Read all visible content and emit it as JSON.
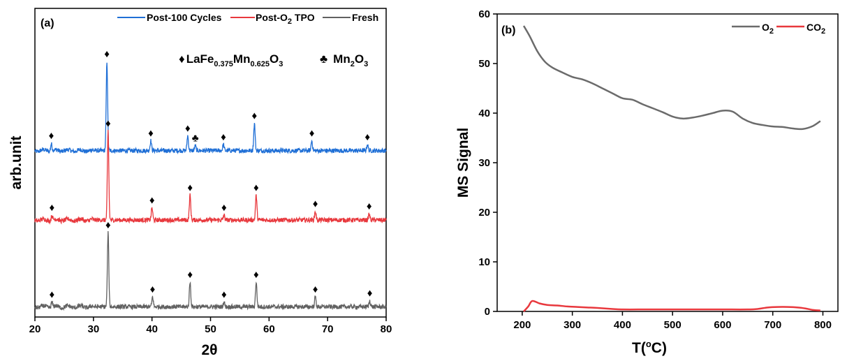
{
  "chart_data": [
    {
      "panel_label": "(a)",
      "type": "line",
      "xlabel": "2θ",
      "ylabel": "arb.unit",
      "xlim": [
        20,
        80
      ],
      "xticks": [
        20,
        30,
        40,
        50,
        60,
        70,
        80
      ],
      "legend": {
        "placement": "top",
        "labels": [
          "Post-100 Cycles",
          "Post-O",
          "2",
          " TPO",
          "Fresh"
        ]
      },
      "annotation": {
        "marker": "♦",
        "text_prefix": "LaFe",
        "sub1": "0.375",
        "mid": "Mn",
        "sub2": "0.625",
        "mid2": "O",
        "sub3": "3",
        "club": "♣",
        "club_text": "Mn",
        "club_sub1": "2",
        "club_mid": "O",
        "club_sub2": "3"
      },
      "series": [
        {
          "name": "Post-100 Cycles",
          "color": "#1f6fd6",
          "baseline": 0.66,
          "peaks": [
            [
              22.8,
              0.03
            ],
            [
              32.3,
              0.36
            ],
            [
              39.8,
              0.04
            ],
            [
              46.1,
              0.06
            ],
            [
              47.4,
              0.02
            ],
            [
              52.2,
              0.025
            ],
            [
              57.5,
              0.11
            ],
            [
              67.3,
              0.04
            ],
            [
              76.8,
              0.025
            ]
          ],
          "markers": [
            [
              22.8,
              "♦"
            ],
            [
              32.3,
              "♦"
            ],
            [
              39.8,
              "♦"
            ],
            [
              46.1,
              "♦"
            ],
            [
              47.4,
              "♣"
            ],
            [
              52.2,
              "♦"
            ],
            [
              57.5,
              "♦"
            ],
            [
              67.3,
              "♦"
            ],
            [
              76.8,
              "♦"
            ]
          ]
        },
        {
          "name": "Post-O2 TPO",
          "color": "#e8383d",
          "baseline": 0.38,
          "peaks": [
            [
              22.9,
              0.02
            ],
            [
              32.5,
              0.36
            ],
            [
              40.0,
              0.05
            ],
            [
              46.5,
              0.1
            ],
            [
              52.3,
              0.02
            ],
            [
              57.8,
              0.1
            ],
            [
              67.9,
              0.035
            ],
            [
              77.1,
              0.025
            ]
          ],
          "markers": [
            [
              22.9,
              "♦"
            ],
            [
              32.5,
              "♦"
            ],
            [
              40.0,
              "♦"
            ],
            [
              46.5,
              "♦"
            ],
            [
              52.3,
              "♦"
            ],
            [
              57.8,
              "♦"
            ],
            [
              67.9,
              "♦"
            ],
            [
              77.1,
              "♦"
            ]
          ]
        },
        {
          "name": "Fresh",
          "color": "#616161",
          "baseline": 0.03,
          "peaks": [
            [
              22.9,
              0.02
            ],
            [
              32.5,
              0.3
            ],
            [
              40.1,
              0.04
            ],
            [
              46.5,
              0.1
            ],
            [
              52.3,
              0.02
            ],
            [
              57.8,
              0.1
            ],
            [
              67.9,
              0.04
            ],
            [
              77.2,
              0.025
            ]
          ],
          "markers": [
            [
              22.9,
              "♦"
            ],
            [
              32.5,
              "♦"
            ],
            [
              40.1,
              "♦"
            ],
            [
              46.5,
              "♦"
            ],
            [
              52.3,
              "♦"
            ],
            [
              57.8,
              "♦"
            ],
            [
              67.9,
              "♦"
            ],
            [
              77.2,
              "♦"
            ]
          ]
        }
      ]
    },
    {
      "panel_label": "(b)",
      "type": "line",
      "xlabel": "T(°C)",
      "xlabel_parts": [
        "T(",
        "o",
        "C)"
      ],
      "ylabel": "MS Signal",
      "xlim": [
        150,
        830
      ],
      "ylim": [
        0,
        60
      ],
      "xticks": [
        200,
        300,
        400,
        500,
        600,
        700,
        800
      ],
      "yticks": [
        0,
        10,
        20,
        30,
        40,
        50,
        60
      ],
      "legend": {
        "placement": "top-right",
        "labels": [
          "O",
          "2",
          "CO",
          "2"
        ]
      },
      "series": [
        {
          "name": "O2",
          "color": "#6b6b6b",
          "x": [
            203,
            215,
            230,
            245,
            260,
            280,
            300,
            320,
            340,
            360,
            380,
            400,
            420,
            440,
            460,
            480,
            500,
            520,
            540,
            560,
            580,
            600,
            620,
            640,
            660,
            680,
            700,
            720,
            740,
            760,
            780,
            795
          ],
          "y": [
            57.6,
            55.5,
            52.5,
            50.4,
            49.2,
            48.2,
            47.3,
            46.8,
            46.0,
            45.0,
            44.0,
            43.0,
            42.7,
            41.8,
            41.0,
            40.2,
            39.3,
            38.9,
            39.1,
            39.5,
            40.0,
            40.5,
            40.3,
            38.9,
            38.0,
            37.6,
            37.3,
            37.2,
            36.9,
            36.8,
            37.4,
            38.4
          ]
        },
        {
          "name": "CO2",
          "color": "#e8383d",
          "x": [
            203,
            212,
            220,
            235,
            250,
            270,
            290,
            310,
            330,
            350,
            380,
            400,
            450,
            500,
            550,
            600,
            650,
            670,
            690,
            710,
            730,
            750,
            765,
            780,
            795
          ],
          "y": [
            0.0,
            1.0,
            2.1,
            1.6,
            1.3,
            1.2,
            1.0,
            0.9,
            0.8,
            0.7,
            0.5,
            0.4,
            0.4,
            0.4,
            0.4,
            0.4,
            0.4,
            0.5,
            0.8,
            0.9,
            0.9,
            0.8,
            0.6,
            0.3,
            0.2
          ]
        }
      ]
    }
  ]
}
